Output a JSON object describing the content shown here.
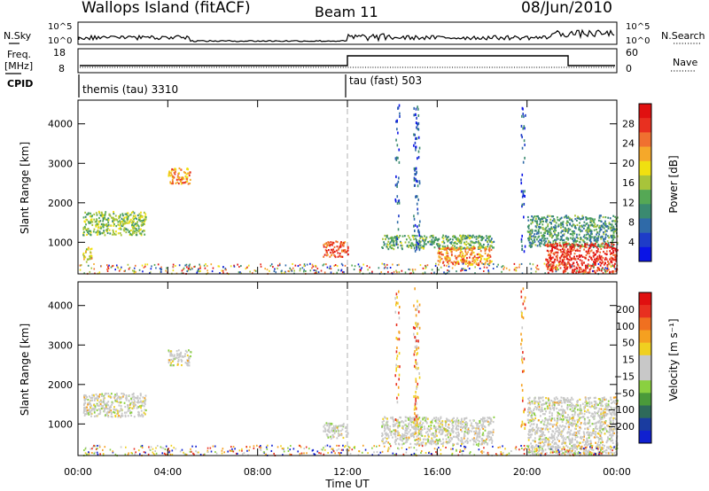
{
  "header": {
    "site_title": "Wallops Island (fitACF)",
    "beam": "Beam 11",
    "date": "08/Jun/2010"
  },
  "strips": {
    "nsky_label": "N.Sky",
    "nsky_ticks": [
      "10^5",
      "10^0"
    ],
    "nsearch_label": "N.Search",
    "nsearch_ticks": [
      "10^5",
      "10^0"
    ],
    "freq_label_line1": "Freq.",
    "freq_label_line2": "[MHz]",
    "freq_ticks": [
      "18",
      "8"
    ],
    "nave_label": "Nave",
    "nave_ticks": [
      "60",
      "0"
    ],
    "cpid_label": "CPID",
    "cpid_segments": [
      {
        "label": "themis (tau) 3310",
        "start_hour": 0,
        "end_hour": 12
      },
      {
        "label": "tau (fast) 503",
        "start_hour": 12,
        "end_hour": 24
      }
    ],
    "freq_step": {
      "low_until_hour": 12,
      "high_from_hour": 12,
      "high_until_hour": 21.83
    }
  },
  "colors": {
    "power_scale": [
      "#0a14e6",
      "#1e3cc8",
      "#2f6aa8",
      "#3a8a70",
      "#55a855",
      "#a8c43a",
      "#f0e010",
      "#f5a82a",
      "#f07030",
      "#e83020",
      "#e01010"
    ],
    "velocity_scale": [
      "#1020d0",
      "#1a3ca0",
      "#2e6a5a",
      "#4a9a3a",
      "#8ad040",
      "#c8c8c8",
      "#c8c8c8",
      "#f0d020",
      "#f5a020",
      "#f07020",
      "#e83020",
      "#e01010"
    ],
    "background": "#ffffff",
    "gridline": "#b0b0b0"
  },
  "chart_data": [
    {
      "type": "heatmap",
      "panel": "power",
      "xlabel": "",
      "ylabel": "Slant Range [km]",
      "xlim_hours": [
        0,
        24
      ],
      "ylim": [
        200,
        4600
      ],
      "x_ticks": [
        "00:00",
        "04:00",
        "08:00",
        "12:00",
        "16:00",
        "20:00",
        "00:00"
      ],
      "y_ticks": [
        1000,
        2000,
        3000,
        4000
      ],
      "colorbar_label": "Power [dB]",
      "colorbar_ticks": [
        "4",
        "8",
        "12",
        "16",
        "20",
        "24",
        "28"
      ],
      "colorbar_range": [
        0,
        30
      ],
      "regions": [
        {
          "t0": 0.2,
          "t1": 3.0,
          "r0": 1200,
          "r1": 1800,
          "level": 14
        },
        {
          "t0": 0.2,
          "t1": 0.6,
          "r0": 500,
          "r1": 900,
          "level": 18
        },
        {
          "t0": 4.0,
          "t1": 5.0,
          "r0": 2500,
          "r1": 2900,
          "level": 22
        },
        {
          "t0": 10.9,
          "t1": 12.0,
          "r0": 650,
          "r1": 1050,
          "level": 26
        },
        {
          "t0": 13.5,
          "t1": 18.5,
          "r0": 850,
          "r1": 1200,
          "level": 12
        },
        {
          "t0": 16.0,
          "t1": 18.4,
          "r0": 450,
          "r1": 900,
          "level": 22
        },
        {
          "t0": 20.0,
          "t1": 24.0,
          "r0": 900,
          "r1": 1700,
          "level": 10
        },
        {
          "t0": 20.8,
          "t1": 24.0,
          "r0": 250,
          "r1": 1000,
          "level": 28
        }
      ]
    },
    {
      "type": "heatmap",
      "panel": "velocity",
      "xlabel": "Time UT",
      "ylabel": "Slant Range [km]",
      "xlim_hours": [
        0,
        24
      ],
      "ylim": [
        200,
        4600
      ],
      "x_ticks": [
        "00:00",
        "04:00",
        "08:00",
        "12:00",
        "16:00",
        "20:00",
        "00:00"
      ],
      "y_ticks": [
        1000,
        2000,
        3000,
        4000
      ],
      "colorbar_label": "Velocity [m s⁻¹]",
      "colorbar_ticks": [
        "200",
        "100",
        "50",
        "15",
        "−15",
        "−50",
        "−100",
        "−200"
      ],
      "colorbar_range": [
        -250,
        250
      ],
      "regions": [
        {
          "t0": 0.2,
          "t1": 3.0,
          "r0": 1200,
          "r1": 1800,
          "level": 0
        },
        {
          "t0": 4.0,
          "t1": 5.0,
          "r0": 2500,
          "r1": 2900,
          "level": 0
        },
        {
          "t0": 10.9,
          "t1": 12.0,
          "r0": 650,
          "r1": 1050,
          "level": 0
        },
        {
          "t0": 13.5,
          "t1": 18.5,
          "r0": 500,
          "r1": 1200,
          "level": 0
        },
        {
          "t0": 20.0,
          "t1": 24.0,
          "r0": 250,
          "r1": 1700,
          "level": 0
        }
      ]
    }
  ]
}
